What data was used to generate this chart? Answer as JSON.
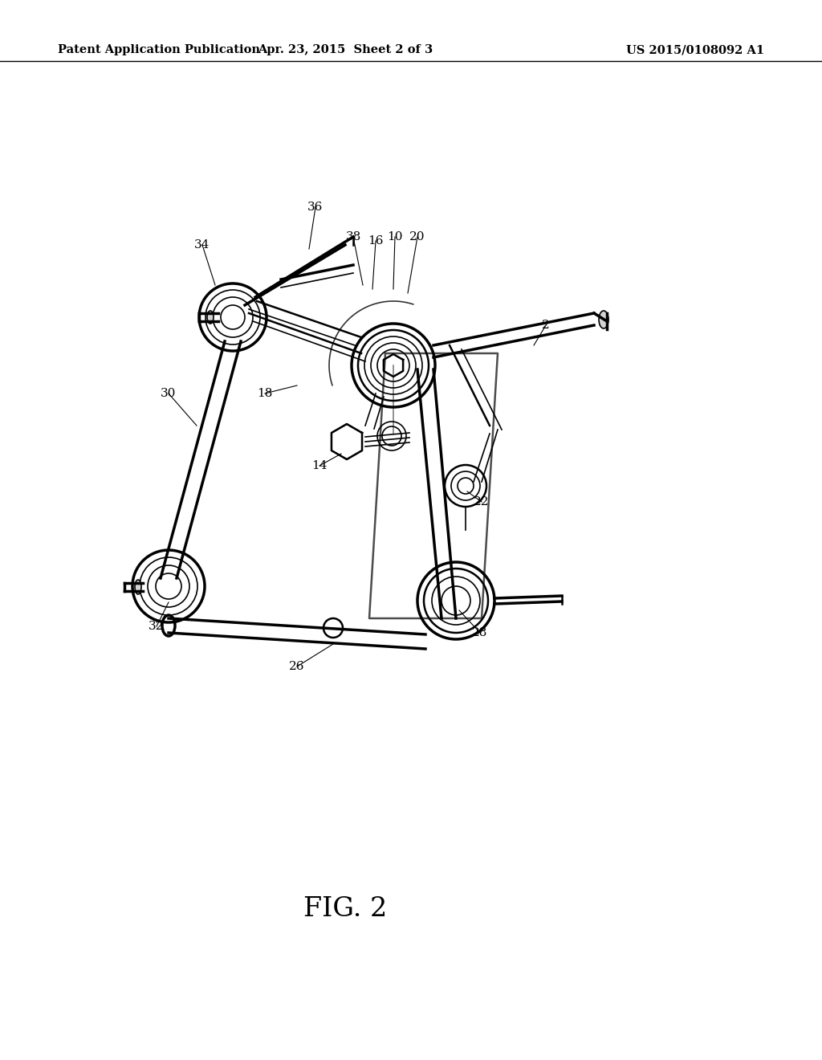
{
  "background_color": "#ffffff",
  "header_left": "Patent Application Publication",
  "header_center": "Apr. 23, 2015  Sheet 2 of 3",
  "header_right": "US 2015/0108092 A1",
  "figure_label": "FIG. 2",
  "page_width": 10.24,
  "page_height": 13.2,
  "dpi": 100,
  "header_fontsize": 10.5,
  "figure_label_fontsize": 24,
  "label_fontsize": 11
}
